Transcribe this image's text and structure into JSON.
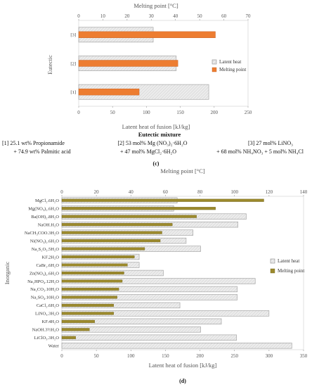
{
  "chart_data": [
    {
      "type": "bar",
      "panel": "(c)",
      "ylabel": "Eutectic",
      "xlabel": "Latent heat of fusion [kJ/kg]",
      "x2label": "Melting point [°C]",
      "categories": [
        "[1]",
        "[2]",
        "[3]"
      ],
      "xlim": [
        0,
        250
      ],
      "x2lim": [
        0,
        70
      ],
      "xticks": [
        "0",
        "50",
        "100",
        "150",
        "200",
        "250"
      ],
      "x2ticks": [
        "0",
        "10",
        "20",
        "30",
        "40",
        "50",
        "60",
        "70"
      ],
      "series": [
        {
          "name": "Latent heat",
          "axis": "bottom",
          "color": "#e6e6e6",
          "values": [
            192,
            144,
            110
          ]
        },
        {
          "name": "Melting point",
          "axis": "top",
          "color": "#ed7d31",
          "values": [
            25,
            41,
            56.5
          ]
        }
      ],
      "legend": "center-right",
      "caption_title": "Eutectic mixture",
      "notes": [
        {
          "line1": "[1] 25.1 wt% Propionamide",
          "line2": "+ 74.9 wt% Palmitic acid"
        },
        {
          "line1": "[2] 53 mol% Mg (NO₃)₂·6H₂O",
          "line2": "+ 47 mol% MgCl₂·6H₂O"
        },
        {
          "line1": "[3] 27 mol% LiNO₃",
          "line2": "+ 68 mol% NH₄NO₃ + 5 mol% NH₄Cl"
        }
      ]
    },
    {
      "type": "bar",
      "panel": "(d)",
      "ylabel": "Inorganic",
      "xlabel": "Latent heat of fusion [kJ/kg]",
      "x2label": "Melting point [°C]",
      "categories": [
        "MgCl₂.6H₂O",
        "Mg(NO₃)₂.6H₂O",
        "Ba(OH)₂.8H₂O",
        "NaOH.H₂O",
        "NaCH₃COO.3H₂O",
        "Ni(NO₃)₂.6H₂O",
        "Na₂S₂O₃.5H₂O",
        "KF.2H₂O",
        "CaBr₂.6H₂O",
        "Zn(NO₃)₂.6H₂O",
        "Na₂HPO₄.12H₂O",
        "Na₂CO₃.10H₂O",
        "Na₂SO₄.10H₂O",
        "CaCl₂.6H₂O",
        "LiNO₃.3H₂O",
        "KF.4H₂O",
        "NaOH.3½H₂O",
        "LiClO₃.3H₂O",
        "Water"
      ],
      "xlim": [
        0,
        350
      ],
      "x2lim": [
        0,
        140
      ],
      "xticks": [
        "0",
        "50",
        "100",
        "150",
        "200",
        "250",
        "300",
        "350"
      ],
      "x2ticks": [
        "0",
        "20",
        "40",
        "60",
        "80",
        "100",
        "120",
        "140"
      ],
      "series": [
        {
          "name": "Latent heat",
          "axis": "bottom",
          "color": "#e6e6e6",
          "values": [
            167,
            162,
            267,
            255,
            190,
            180,
            201,
            112,
            112,
            147,
            280,
            254,
            254,
            171,
            300,
            231,
            201,
            253,
            333
          ]
        },
        {
          "name": "Melting point",
          "axis": "top",
          "color": "#9c8a2c",
          "values": [
            117,
            89,
            78,
            64,
            58,
            57,
            48,
            42,
            38,
            36,
            35,
            33,
            32,
            30,
            30,
            19,
            16,
            8,
            0
          ]
        }
      ],
      "legend": "center-right"
    }
  ]
}
